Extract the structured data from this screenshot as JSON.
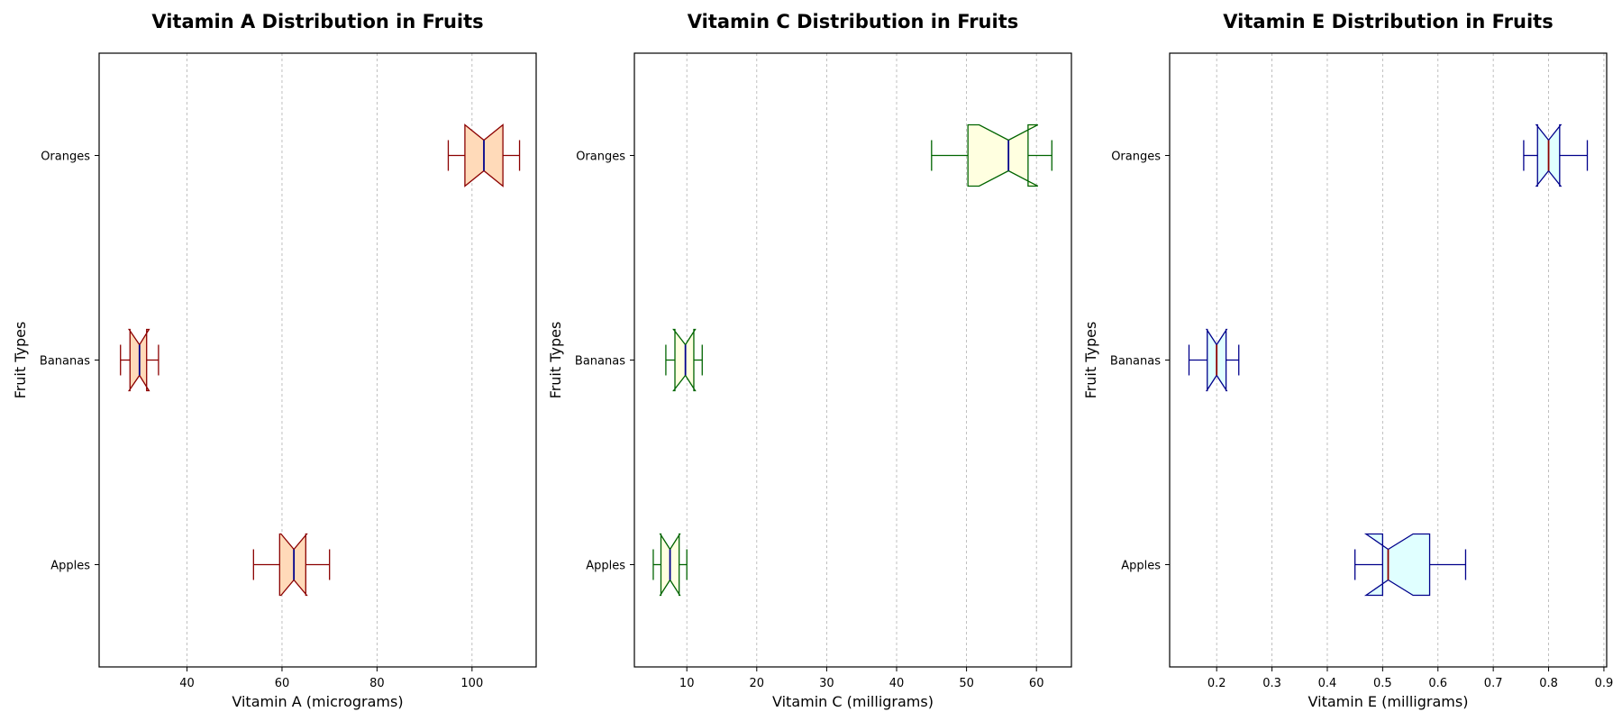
{
  "chart_data": [
    {
      "type": "boxplot",
      "orientation": "horizontal",
      "notched": true,
      "title": "Vitamin A Distribution in Fruits",
      "xlabel": "Vitamin A (micrograms)",
      "ylabel": "Fruit Types",
      "xlim": [
        21.5,
        113.5
      ],
      "xticks": [
        40,
        60,
        80,
        100
      ],
      "xtick_labels": [
        "40",
        "60",
        "80",
        "100"
      ],
      "categories": [
        "Apples",
        "Bananas",
        "Oranges"
      ],
      "boxes": [
        {
          "name": "Apples",
          "whislo": 54,
          "q1": 59.5,
          "med": 62.5,
          "q3": 65,
          "whishi": 70,
          "notch_lo": 59.8,
          "notch_hi": 65.2
        },
        {
          "name": "Bananas",
          "whislo": 26,
          "q1": 28,
          "med": 30,
          "q3": 31.5,
          "whishi": 34,
          "notch_lo": 27.8,
          "notch_hi": 32
        },
        {
          "name": "Oranges",
          "whislo": 95,
          "q1": 98.5,
          "med": 102.5,
          "q3": 106.5,
          "whishi": 110,
          "notch_lo": 98.5,
          "notch_hi": 106.5
        }
      ],
      "grid": "vertical",
      "colors": {
        "fill": "#ffdab9",
        "edge": "#8b0000",
        "median": "#00008b"
      }
    },
    {
      "type": "boxplot",
      "orientation": "horizontal",
      "notched": true,
      "title": "Vitamin C Distribution in Fruits",
      "xlabel": "Vitamin C (milligrams)",
      "ylabel": "Fruit Types",
      "xlim": [
        2.5,
        65
      ],
      "xticks": [
        10,
        20,
        30,
        40,
        50,
        60
      ],
      "xtick_labels": [
        "10",
        "20",
        "30",
        "40",
        "50",
        "60"
      ],
      "categories": [
        "Apples",
        "Bananas",
        "Oranges"
      ],
      "boxes": [
        {
          "name": "Apples",
          "whislo": 5.2,
          "q1": 6.3,
          "med": 7.6,
          "q3": 8.9,
          "whishi": 10,
          "notch_lo": 6.2,
          "notch_hi": 9
        },
        {
          "name": "Bananas",
          "whislo": 7,
          "q1": 8.3,
          "med": 9.8,
          "q3": 11,
          "whishi": 12.2,
          "notch_lo": 8.1,
          "notch_hi": 11.2
        },
        {
          "name": "Oranges",
          "whislo": 45,
          "q1": 50.2,
          "med": 56,
          "q3": 58.8,
          "whishi": 62.2,
          "notch_lo": 51.8,
          "notch_hi": 60.2
        }
      ],
      "grid": "vertical",
      "colors": {
        "fill": "#ffffe0",
        "edge": "#006400",
        "median": "#00008b"
      }
    },
    {
      "type": "boxplot",
      "orientation": "horizontal",
      "notched": true,
      "title": "Vitamin E Distribution in Fruits",
      "xlabel": "Vitamin E (milligrams)",
      "ylabel": "Fruit Types",
      "xlim": [
        0.115,
        0.905
      ],
      "xticks": [
        0.2,
        0.3,
        0.4,
        0.5,
        0.6,
        0.7,
        0.8,
        0.9
      ],
      "xtick_labels": [
        "0.2",
        "0.3",
        "0.4",
        "0.5",
        "0.6",
        "0.7",
        "0.8",
        "0.9"
      ],
      "categories": [
        "Apples",
        "Bananas",
        "Oranges"
      ],
      "boxes": [
        {
          "name": "Apples",
          "whislo": 0.45,
          "q1": 0.5,
          "med": 0.51,
          "q3": 0.585,
          "whishi": 0.65,
          "notch_lo": 0.47,
          "notch_hi": 0.555
        },
        {
          "name": "Bananas",
          "whislo": 0.15,
          "q1": 0.183,
          "med": 0.2,
          "q3": 0.217,
          "whishi": 0.24,
          "notch_lo": 0.182,
          "notch_hi": 0.218
        },
        {
          "name": "Oranges",
          "whislo": 0.755,
          "q1": 0.78,
          "med": 0.8,
          "q3": 0.82,
          "whishi": 0.87,
          "notch_lo": 0.778,
          "notch_hi": 0.822
        }
      ],
      "grid": "vertical",
      "colors": {
        "fill": "#e0ffff",
        "edge": "#00008b",
        "median": "#8b0000"
      }
    }
  ]
}
